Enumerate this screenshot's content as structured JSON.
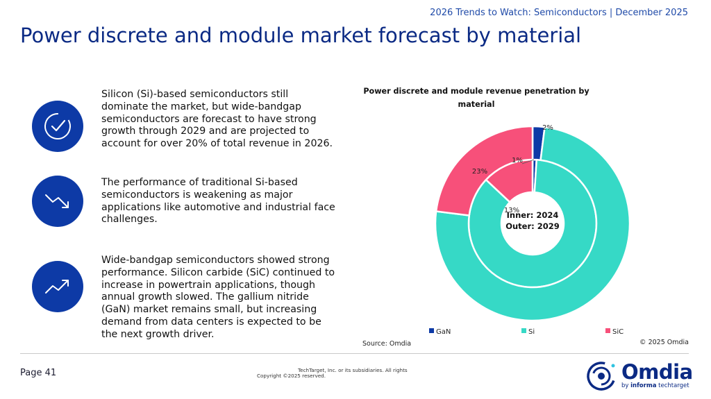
{
  "header": {
    "report_label": "2026 Trends to Watch: Semiconductors | December 2025"
  },
  "slide_title": "Power discrete and module market forecast by material",
  "bullets": [
    {
      "icon": "checkmark-icon",
      "text": "Silicon (Si)-based semiconductors still dominate the market, but wide-bandgap semiconductors are forecast to have strong growth through 2029 and are projected to account for over 20% of total revenue in 2026."
    },
    {
      "icon": "trend-down-icon",
      "text": "The performance of traditional Si-based semiconductors is weakening as major applications like automotive and industrial face challenges."
    },
    {
      "icon": "trend-up-icon",
      "text": "Wide-bandgap semiconductors showed strong performance. Silicon carbide (SiC) continued to increase in powertrain applications, though annual growth slowed. The gallium nitride (GaN) market remains small, but increasing demand from data centers is expected to be the next growth driver."
    }
  ],
  "chart_data": {
    "type": "pie",
    "subtype": "nested-donut",
    "title_line1": "Power discrete and module revenue penetration by",
    "title_line2": "material",
    "center_label_line1": "Inner: 2024",
    "center_label_line2": "Outer: 2029",
    "categories": [
      "GaN",
      "Si",
      "SiC"
    ],
    "series": [
      {
        "name": "Inner: 2024",
        "values": [
          1,
          86,
          13
        ],
        "labels": [
          "1%",
          "86%",
          "13%"
        ]
      },
      {
        "name": "Outer: 2029",
        "values": [
          2,
          75,
          23
        ],
        "labels": [
          "2%",
          "75%",
          "23%"
        ]
      }
    ],
    "colors": [
      "#0d3aa6",
      "#36d9c6",
      "#f7507a"
    ],
    "legend_position": "bottom",
    "source": "Source: Omdia",
    "copyright": "© 2025 Omdia"
  },
  "footer": {
    "page_number": "Page 41",
    "legal_line1": "TechTarget, Inc. or its subsidiaries. All rights",
    "legal_line2": "Copyright ©2025 reserved.",
    "logo_word": "Omdia",
    "logo_sub_prefix": "by ",
    "logo_sub_brand": "informa",
    "logo_sub_suffix": " techtarget"
  }
}
